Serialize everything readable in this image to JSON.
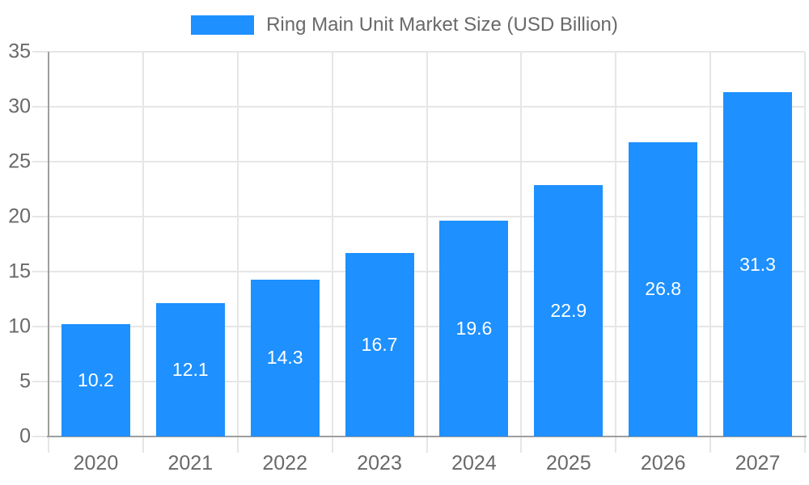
{
  "legend": {
    "label": "Ring Main Unit Market Size (USD Billion)"
  },
  "chart_data": {
    "type": "bar",
    "title": "Ring Main Unit Market Size (USD Billion)",
    "categories": [
      "2020",
      "2021",
      "2022",
      "2023",
      "2024",
      "2025",
      "2026",
      "2027"
    ],
    "values": [
      10.2,
      12.1,
      14.3,
      16.7,
      19.6,
      22.9,
      26.8,
      31.3
    ],
    "value_labels": [
      "10.2",
      "12.1",
      "14.3",
      "16.7",
      "19.6",
      "22.9",
      "26.8",
      "31.3"
    ],
    "xlabel": "",
    "ylabel": "",
    "ylim": [
      0,
      35
    ],
    "yticks": [
      0,
      5,
      10,
      15,
      20,
      25,
      30,
      35
    ],
    "grid": true,
    "legend_position": "top-center",
    "colors": {
      "bar": "#1e90ff",
      "value_label": "#ffffff",
      "axis_line": "#9e9e9e",
      "grid_line": "#e6e6e6",
      "tick_label": "#696969"
    }
  }
}
